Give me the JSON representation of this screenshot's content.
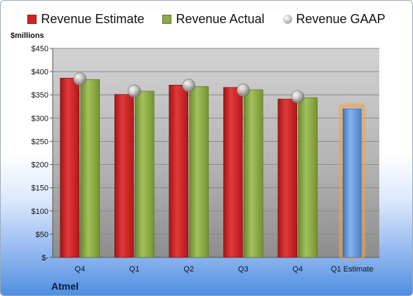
{
  "legend": {
    "estimate": "Revenue Estimate",
    "actual": "Revenue Actual",
    "gaap": "Revenue GAAP"
  },
  "units_label": "$millions",
  "company": "Atmel",
  "colors": {
    "estimate": "#d42020",
    "actual": "#8aaa45",
    "future_estimate": "#5f95d6",
    "highlight": "#f5a142",
    "gaap_marker": "#b0b0b0"
  },
  "chart_data": {
    "type": "bar",
    "categories": [
      "Q4",
      "Q1",
      "Q2",
      "Q3",
      "Q4",
      "Q1 Estimate"
    ],
    "y_tick_labels": [
      "$-",
      "$50",
      "$100",
      "$150",
      "$200",
      "$250",
      "$300",
      "$350",
      "$400",
      "$450"
    ],
    "ylim": [
      0,
      450
    ],
    "grid": true,
    "legend_position": "top",
    "series": [
      {
        "name": "Revenue Estimate",
        "values": [
          386,
          351,
          371,
          366,
          341,
          null
        ]
      },
      {
        "name": "Revenue Actual",
        "values": [
          383,
          358,
          368,
          361,
          344,
          null
        ]
      },
      {
        "name": "Revenue GAAP",
        "values": [
          384,
          358,
          370,
          360,
          346,
          null
        ]
      }
    ],
    "future_estimate": {
      "category": "Q1 Estimate",
      "value": 320
    }
  }
}
